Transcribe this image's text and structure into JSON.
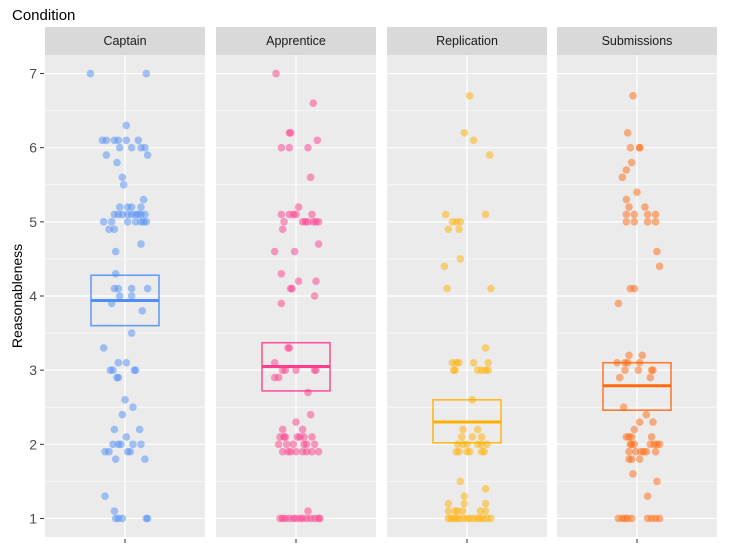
{
  "chart_data": {
    "type": "scatter",
    "subtype": "faceted jitter plot with crossbars (mean and interval)",
    "title": "Condition",
    "ylabel": "Reasonableness",
    "xlabel": "",
    "ylim": [
      0.75,
      7.25
    ],
    "yticks": [
      1,
      2,
      3,
      4,
      5,
      6,
      7
    ],
    "grid": true,
    "legend": "none",
    "facets": [
      {
        "name": "Captain",
        "color": "#4f8ef5",
        "crossbar": {
          "upper": 4.28,
          "middle": 3.94,
          "lower": 3.6
        },
        "points": [
          {
            "y": 7.0,
            "jitter": [
              -0.26,
              0.16
            ]
          },
          {
            "y": 6.3,
            "jitter": [
              0.01
            ]
          },
          {
            "y": 6.1,
            "jitter": [
              -0.17,
              -0.14,
              -0.08,
              -0.05,
              0.01,
              0.1
            ]
          },
          {
            "y": 6.0,
            "jitter": [
              -0.04,
              0.05,
              0.12,
              0.15
            ]
          },
          {
            "y": 5.9,
            "jitter": [
              -0.14,
              0.17
            ]
          },
          {
            "y": 5.8,
            "jitter": [
              -0.06
            ]
          },
          {
            "y": 5.6,
            "jitter": [
              -0.02
            ]
          },
          {
            "y": 5.5,
            "jitter": [
              -0.01
            ]
          },
          {
            "y": 5.3,
            "jitter": [
              0.14
            ]
          },
          {
            "y": 5.2,
            "jitter": [
              -0.04,
              0.02,
              0.05,
              0.12
            ]
          },
          {
            "y": 5.1,
            "jitter": [
              -0.08,
              -0.05,
              -0.02,
              0.02,
              0.05,
              0.08,
              0.1,
              0.12,
              0.15
            ]
          },
          {
            "y": 5.0,
            "jitter": [
              -0.16,
              -0.1,
              0.02,
              0.08,
              0.12,
              0.14,
              0.16
            ]
          },
          {
            "y": 4.9,
            "jitter": [
              -0.12,
              -0.08
            ]
          },
          {
            "y": 4.7,
            "jitter": [
              0.12
            ]
          },
          {
            "y": 4.6,
            "jitter": [
              -0.07
            ]
          },
          {
            "y": 4.3,
            "jitter": [
              -0.07
            ]
          },
          {
            "y": 4.1,
            "jitter": [
              -0.08,
              -0.05,
              0.05,
              0.17
            ]
          },
          {
            "y": 4.0,
            "jitter": [
              -0.04,
              0.05
            ]
          },
          {
            "y": 3.9,
            "jitter": [
              -0.1
            ]
          },
          {
            "y": 3.8,
            "jitter": [
              0.13
            ]
          },
          {
            "y": 3.5,
            "jitter": [
              0.05
            ]
          },
          {
            "y": 3.3,
            "jitter": [
              -0.16
            ]
          },
          {
            "y": 3.1,
            "jitter": [
              -0.05,
              0.01
            ]
          },
          {
            "y": 3.0,
            "jitter": [
              -0.11,
              -0.09,
              0.07,
              0.08
            ]
          },
          {
            "y": 2.9,
            "jitter": [
              -0.06,
              -0.05
            ]
          },
          {
            "y": 2.6,
            "jitter": [
              0.0
            ]
          },
          {
            "y": 2.5,
            "jitter": [
              0.06
            ]
          },
          {
            "y": 2.4,
            "jitter": [
              -0.02
            ]
          },
          {
            "y": 2.2,
            "jitter": [
              -0.08,
              0.11
            ]
          },
          {
            "y": 2.1,
            "jitter": [
              0.01
            ]
          },
          {
            "y": 2.0,
            "jitter": [
              -0.09,
              -0.05,
              -0.03,
              0.06,
              0.12
            ]
          },
          {
            "y": 1.9,
            "jitter": [
              -0.15,
              -0.12,
              0.02,
              0.04
            ]
          },
          {
            "y": 1.8,
            "jitter": [
              -0.07,
              0.15
            ]
          },
          {
            "y": 1.3,
            "jitter": [
              -0.15
            ]
          },
          {
            "y": 1.1,
            "jitter": [
              -0.08
            ]
          },
          {
            "y": 1.0,
            "jitter": [
              -0.07,
              -0.05,
              -0.02,
              0.16,
              0.17
            ]
          }
        ]
      },
      {
        "name": "Apprentice",
        "color": "#ff3d8b",
        "crossbar": {
          "upper": 3.37,
          "middle": 3.05,
          "lower": 2.72
        },
        "points": [
          {
            "y": 7.0,
            "jitter": [
              -0.15
            ]
          },
          {
            "y": 6.6,
            "jitter": [
              0.13
            ]
          },
          {
            "y": 6.2,
            "jitter": [
              -0.05,
              -0.04
            ]
          },
          {
            "y": 6.1,
            "jitter": [
              0.16
            ]
          },
          {
            "y": 6.0,
            "jitter": [
              -0.11,
              -0.05,
              0.09
            ]
          },
          {
            "y": 5.6,
            "jitter": [
              0.11
            ]
          },
          {
            "y": 5.2,
            "jitter": [
              0.02
            ]
          },
          {
            "y": 5.1,
            "jitter": [
              -0.11,
              -0.05,
              -0.02,
              0.0,
              0.12
            ]
          },
          {
            "y": 5.0,
            "jitter": [
              -0.09,
              0.05,
              0.07,
              0.09,
              0.13,
              0.15,
              0.17
            ]
          },
          {
            "y": 4.9,
            "jitter": [
              -0.1
            ]
          },
          {
            "y": 4.7,
            "jitter": [
              0.17
            ]
          },
          {
            "y": 4.6,
            "jitter": [
              -0.16,
              -0.01
            ]
          },
          {
            "y": 4.3,
            "jitter": [
              -0.11
            ]
          },
          {
            "y": 4.2,
            "jitter": [
              0.02,
              0.15
            ]
          },
          {
            "y": 4.1,
            "jitter": [
              -0.04,
              -0.03
            ]
          },
          {
            "y": 4.0,
            "jitter": [
              0.14
            ]
          },
          {
            "y": 3.9,
            "jitter": [
              -0.11
            ]
          },
          {
            "y": 3.3,
            "jitter": [
              -0.06,
              -0.05
            ]
          },
          {
            "y": 3.1,
            "jitter": [
              -0.16
            ]
          },
          {
            "y": 3.0,
            "jitter": [
              -0.1,
              -0.08,
              0.0,
              0.14,
              0.15
            ]
          },
          {
            "y": 2.9,
            "jitter": [
              -0.16,
              -0.13
            ]
          },
          {
            "y": 2.7,
            "jitter": [
              0.09
            ]
          },
          {
            "y": 2.4,
            "jitter": [
              0.11
            ]
          },
          {
            "y": 2.3,
            "jitter": [
              0.0
            ]
          },
          {
            "y": 2.2,
            "jitter": [
              -0.1,
              0.05
            ]
          },
          {
            "y": 2.1,
            "jitter": [
              -0.12,
              -0.09,
              -0.08,
              0.01,
              0.03,
              0.06,
              0.12
            ]
          },
          {
            "y": 2.0,
            "jitter": [
              -0.13,
              -0.07,
              -0.02,
              0.06,
              0.08,
              0.14
            ]
          },
          {
            "y": 1.9,
            "jitter": [
              -0.1,
              -0.06,
              -0.04,
              0.0,
              0.05,
              0.08,
              0.12,
              0.17
            ]
          },
          {
            "y": 1.1,
            "jitter": [
              0.09
            ]
          },
          {
            "y": 1.0,
            "jitter": [
              -0.12,
              -0.1,
              -0.08,
              -0.05,
              -0.02,
              0.0,
              0.03,
              0.05,
              0.08,
              0.11,
              0.14,
              0.17,
              0.18
            ]
          }
        ]
      },
      {
        "name": "Replication",
        "color": "#ffb000",
        "crossbar": {
          "upper": 2.6,
          "middle": 2.3,
          "lower": 2.02
        },
        "points": [
          {
            "y": 6.7,
            "jitter": [
              0.02
            ]
          },
          {
            "y": 6.2,
            "jitter": [
              -0.02
            ]
          },
          {
            "y": 6.1,
            "jitter": [
              0.05
            ]
          },
          {
            "y": 5.9,
            "jitter": [
              0.17
            ]
          },
          {
            "y": 5.1,
            "jitter": [
              -0.16,
              0.14
            ]
          },
          {
            "y": 5.0,
            "jitter": [
              -0.11,
              -0.08,
              -0.05
            ]
          },
          {
            "y": 4.9,
            "jitter": [
              -0.14,
              -0.06
            ]
          },
          {
            "y": 4.5,
            "jitter": [
              -0.05
            ]
          },
          {
            "y": 4.4,
            "jitter": [
              -0.17
            ]
          },
          {
            "y": 4.1,
            "jitter": [
              -0.15,
              0.18
            ]
          },
          {
            "y": 3.3,
            "jitter": [
              0.14
            ]
          },
          {
            "y": 3.1,
            "jitter": [
              -0.11,
              -0.08,
              -0.06,
              0.05,
              0.16
            ]
          },
          {
            "y": 3.0,
            "jitter": [
              -0.1,
              -0.09,
              0.08,
              0.11,
              0.14,
              0.16
            ]
          },
          {
            "y": 2.6,
            "jitter": [
              0.04
            ]
          },
          {
            "y": 2.2,
            "jitter": [
              -0.03,
              0.08
            ]
          },
          {
            "y": 2.1,
            "jitter": [
              -0.04,
              0.04,
              0.11
            ]
          },
          {
            "y": 2.0,
            "jitter": [
              -0.07,
              -0.03,
              0.0,
              0.08,
              0.11,
              0.15
            ]
          },
          {
            "y": 1.9,
            "jitter": [
              -0.08,
              -0.06,
              0.0,
              0.02,
              0.11,
              0.13
            ]
          },
          {
            "y": 1.5,
            "jitter": [
              -0.05
            ]
          },
          {
            "y": 1.4,
            "jitter": [
              0.14
            ]
          },
          {
            "y": 1.3,
            "jitter": [
              -0.02
            ]
          },
          {
            "y": 1.2,
            "jitter": [
              -0.14,
              -0.02,
              0.14
            ]
          },
          {
            "y": 1.1,
            "jitter": [
              -0.14,
              -0.09,
              -0.07,
              -0.03,
              0.1,
              0.14
            ]
          },
          {
            "y": 1.0,
            "jitter": [
              -0.14,
              -0.12,
              -0.1,
              -0.08,
              -0.06,
              -0.03,
              0.0,
              0.02,
              0.05,
              0.08,
              0.1,
              0.12,
              0.15,
              0.18
            ]
          }
        ]
      },
      {
        "name": "Submissions",
        "color": "#ff6a10",
        "crossbar": {
          "upper": 3.1,
          "middle": 2.79,
          "lower": 2.46
        },
        "points": [
          {
            "y": 6.7,
            "jitter": [
              -0.03
            ]
          },
          {
            "y": 6.2,
            "jitter": [
              -0.07
            ]
          },
          {
            "y": 6.0,
            "jitter": [
              -0.05,
              0.02,
              0.02
            ]
          },
          {
            "y": 5.8,
            "jitter": [
              -0.04
            ]
          },
          {
            "y": 5.7,
            "jitter": [
              -0.08
            ]
          },
          {
            "y": 5.6,
            "jitter": [
              -0.11
            ]
          },
          {
            "y": 5.4,
            "jitter": [
              0.0
            ]
          },
          {
            "y": 5.3,
            "jitter": [
              -0.08
            ]
          },
          {
            "y": 5.2,
            "jitter": [
              -0.06,
              0.06
            ]
          },
          {
            "y": 5.1,
            "jitter": [
              -0.08,
              -0.02,
              0.08,
              0.14
            ]
          },
          {
            "y": 5.0,
            "jitter": [
              -0.08,
              -0.02,
              0.08,
              0.14
            ]
          },
          {
            "y": 4.6,
            "jitter": [
              0.15
            ]
          },
          {
            "y": 4.4,
            "jitter": [
              0.17
            ]
          },
          {
            "y": 4.1,
            "jitter": [
              -0.05,
              -0.02
            ]
          },
          {
            "y": 3.9,
            "jitter": [
              -0.14
            ]
          },
          {
            "y": 3.2,
            "jitter": [
              -0.06,
              0.04
            ]
          },
          {
            "y": 3.1,
            "jitter": [
              -0.15,
              -0.09,
              -0.07,
              0.02
            ]
          },
          {
            "y": 3.0,
            "jitter": [
              -0.09,
              0.01,
              0.11,
              0.12
            ]
          },
          {
            "y": 2.9,
            "jitter": [
              -0.13,
              0.1
            ]
          },
          {
            "y": 2.5,
            "jitter": [
              -0.1
            ]
          },
          {
            "y": 2.4,
            "jitter": [
              0.07
            ]
          },
          {
            "y": 2.3,
            "jitter": [
              0.02,
              0.12
            ]
          },
          {
            "y": 2.2,
            "jitter": [
              -0.02
            ]
          },
          {
            "y": 2.1,
            "jitter": [
              -0.08,
              -0.06,
              -0.04,
              0.11
            ]
          },
          {
            "y": 2.0,
            "jitter": [
              -0.05,
              -0.04,
              -0.02,
              0.1,
              0.13,
              0.15,
              0.17
            ]
          },
          {
            "y": 1.9,
            "jitter": [
              -0.06,
              -0.01,
              0.03,
              0.05,
              0.07,
              0.14
            ]
          },
          {
            "y": 1.8,
            "jitter": [
              -0.06,
              -0.04,
              0.02
            ]
          },
          {
            "y": 1.6,
            "jitter": [
              -0.03
            ]
          },
          {
            "y": 1.5,
            "jitter": [
              0.15
            ]
          },
          {
            "y": 1.3,
            "jitter": [
              0.08
            ]
          },
          {
            "y": 1.0,
            "jitter": [
              -0.14,
              -0.11,
              -0.09,
              -0.07,
              -0.04,
              0.08,
              0.11,
              0.14,
              0.17
            ]
          }
        ]
      }
    ]
  }
}
